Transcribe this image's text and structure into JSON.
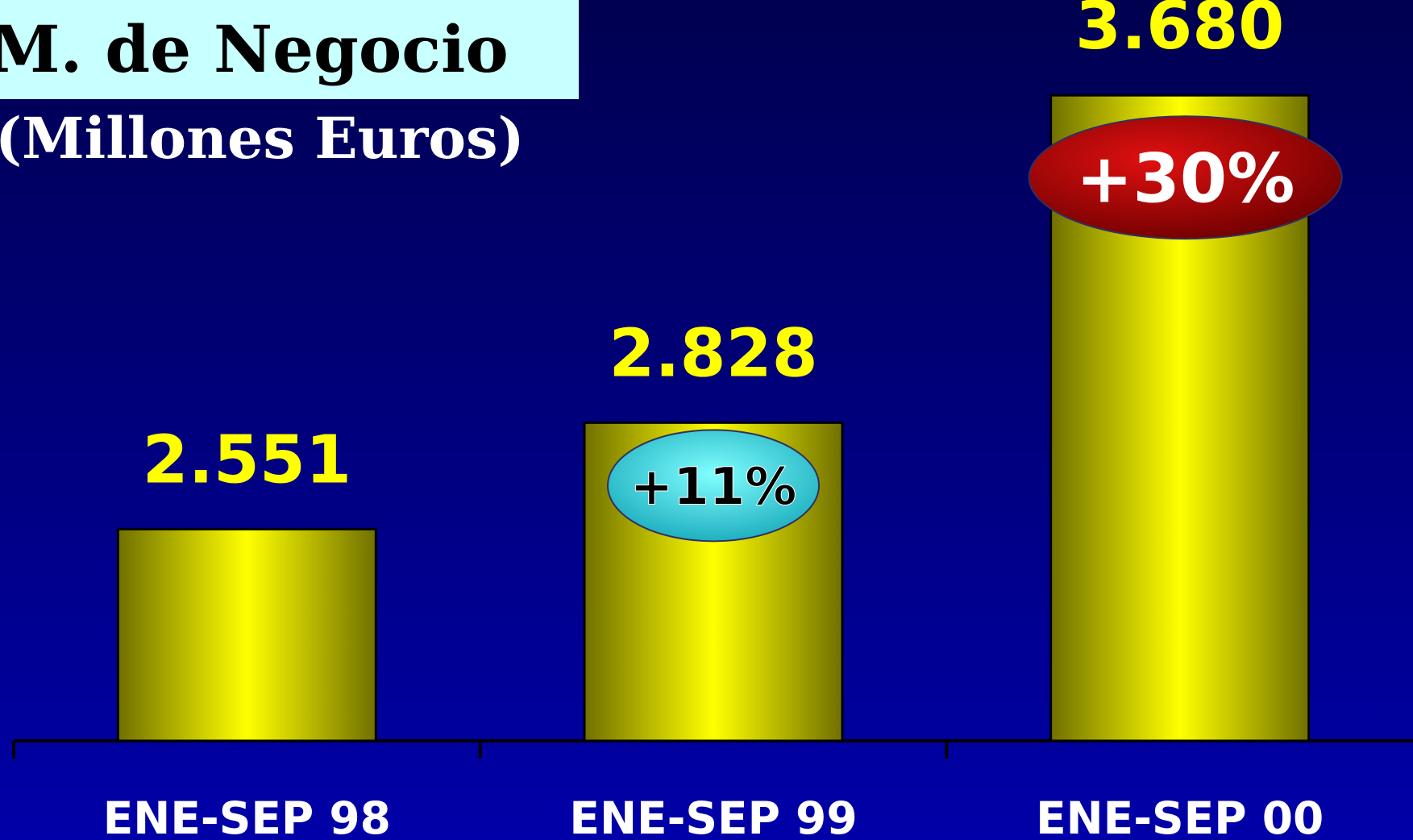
{
  "chart_data": {
    "type": "bar",
    "title": "M. de Negocio",
    "subtitle": "(Millones Euros)",
    "categories": [
      "ENE-SEP 98",
      "ENE-SEP 99",
      "ENE-SEP 00"
    ],
    "values": [
      2551,
      2828,
      3680
    ],
    "value_labels": [
      "2.551",
      "2.828",
      "3.680"
    ],
    "color": "#ffff00",
    "ylim": [
      2000,
      3800
    ],
    "annotations": [
      "+11%",
      "+30%"
    ]
  }
}
